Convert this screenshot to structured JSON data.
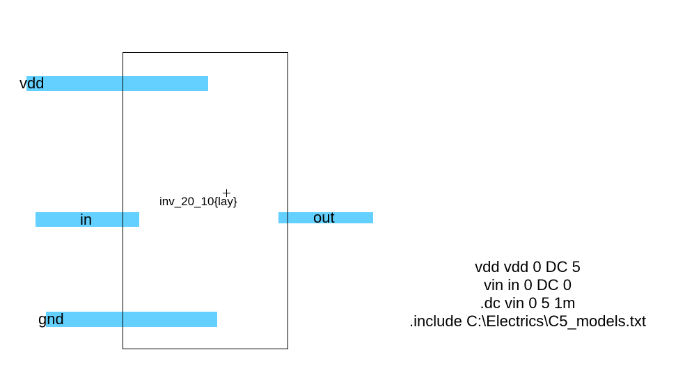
{
  "cell": {
    "name": "inv_20_10{lay}"
  },
  "exports": {
    "vdd": "vdd",
    "in": "in",
    "out": "out",
    "gnd": "gnd"
  },
  "spice": {
    "lines": [
      "vdd vdd 0 DC 5",
      "vin in 0 DC 0",
      ".dc vin 0 5 1m",
      ".include C:\\Electrics\\C5_models.txt"
    ]
  },
  "colors": {
    "wire": "#64d0ff",
    "outline": "#000000",
    "background": "#ffffff"
  }
}
